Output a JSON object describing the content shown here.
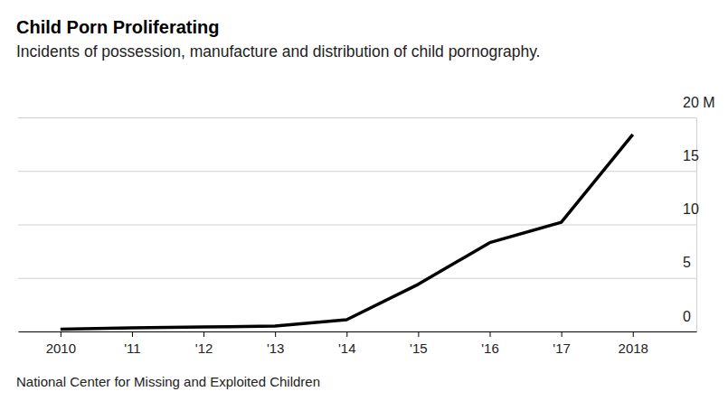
{
  "chart_data": {
    "type": "line",
    "title": "Child Porn Proliferating",
    "subtitle": "Incidents of possession, manufacture and distribution of child pornography.",
    "source": "National Center for Missing and Exploited Children",
    "categories": [
      "2010",
      "'11",
      "'12",
      "'13",
      "'14",
      "'15",
      "'16",
      "'17",
      "2018"
    ],
    "values": [
      0.22,
      0.33,
      0.42,
      0.5,
      1.1,
      4.4,
      8.3,
      10.2,
      18.4
    ],
    "color": "#000000",
    "ylim": [
      0,
      20
    ],
    "yticks": [
      0,
      5,
      10,
      15,
      {
        "value": 20,
        "label": "20 M"
      }
    ],
    "grid": true
  }
}
